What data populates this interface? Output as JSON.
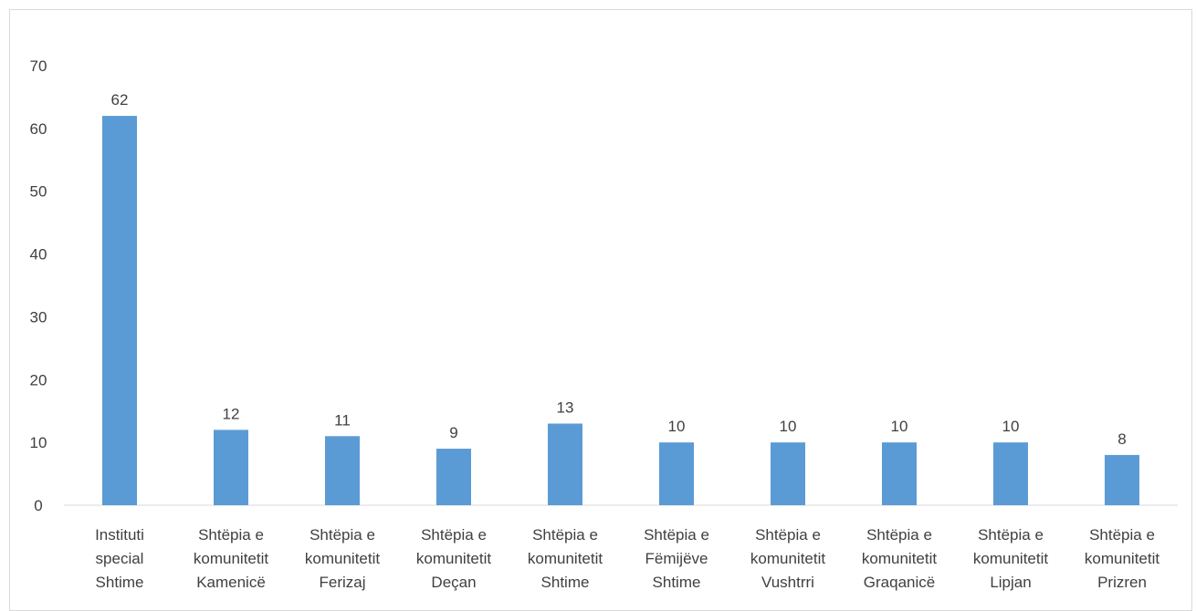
{
  "chart_data": {
    "type": "bar",
    "categories": [
      [
        "Instituti",
        "special",
        "Shtime"
      ],
      [
        "Shtëpia e",
        "komunitetit",
        "Kamenicë"
      ],
      [
        "Shtëpia e",
        "komunitetit",
        "Ferizaj"
      ],
      [
        "Shtëpia e",
        "komunitetit",
        "Deçan"
      ],
      [
        "Shtëpia e",
        "komunitetit",
        "Shtime"
      ],
      [
        "Shtëpia e",
        "Fëmijëve",
        "Shtime"
      ],
      [
        "Shtëpia e",
        "komunitetit",
        "Vushtrri"
      ],
      [
        "Shtëpia e",
        "komunitetit",
        "Graqanicë"
      ],
      [
        "Shtëpia e",
        "komunitetit",
        "Lipjan"
      ],
      [
        "Shtëpia e",
        "komunitetit",
        "Prizren"
      ]
    ],
    "values": [
      62,
      12,
      11,
      9,
      13,
      10,
      10,
      10,
      10,
      8
    ],
    "ylim": [
      0,
      70
    ],
    "yticks": [
      0,
      10,
      20,
      30,
      40,
      50,
      60,
      70
    ],
    "grid": false,
    "bar_color": "#5b9bd5",
    "axis_color": "#d9d9d9",
    "text_color": "#404040"
  }
}
